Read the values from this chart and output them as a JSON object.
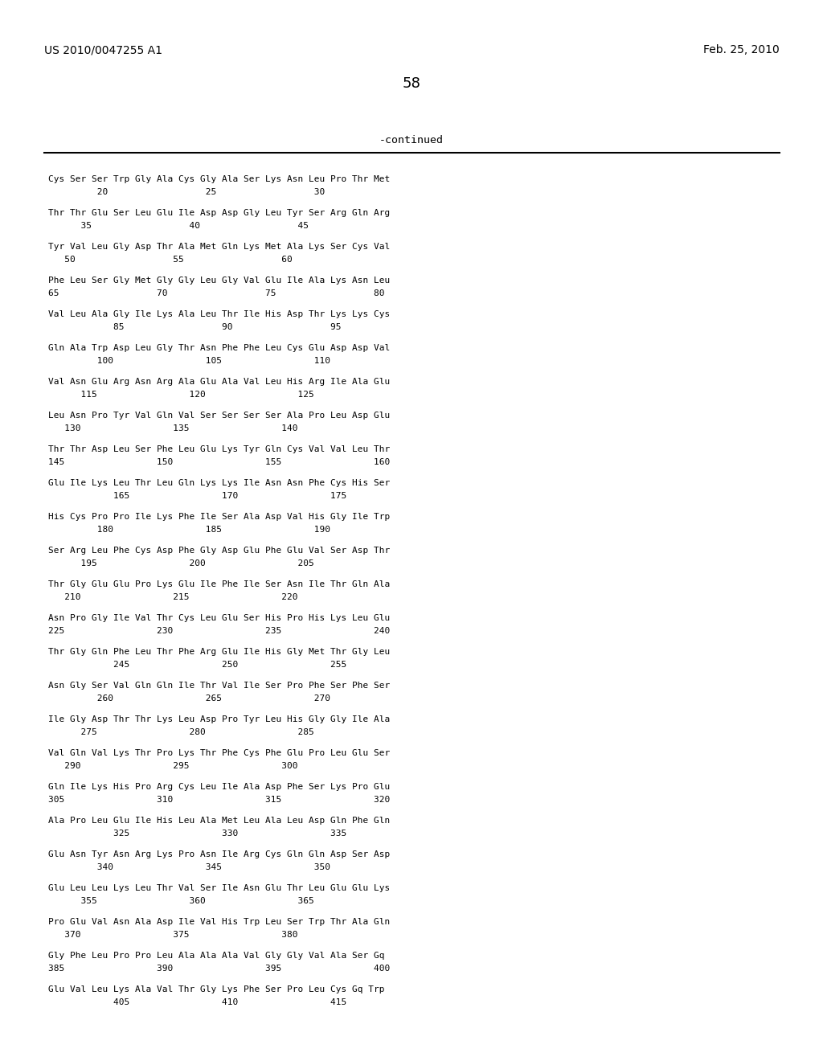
{
  "header_left": "US 2010/0047255 A1",
  "header_right": "Feb. 25, 2010",
  "page_number": "58",
  "continued_label": "-continued",
  "lines": [
    [
      "Cys Ser Ser Trp Gly Ala Cys Gly Ala Ser Lys Asn Leu Pro Thr Met",
      "         20                  25                  30"
    ],
    [
      "Thr Thr Glu Ser Leu Glu Ile Asp Asp Gly Leu Tyr Ser Arg Gln Arg",
      "      35                  40                  45"
    ],
    [
      "Tyr Val Leu Gly Asp Thr Ala Met Gln Lys Met Ala Lys Ser Cys Val",
      "   50                  55                  60"
    ],
    [
      "Phe Leu Ser Gly Met Gly Gly Leu Gly Val Glu Ile Ala Lys Asn Leu",
      "65                  70                  75                  80"
    ],
    [
      "Val Leu Ala Gly Ile Lys Ala Leu Thr Ile His Asp Thr Lys Lys Cys",
      "            85                  90                  95"
    ],
    [
      "Gln Ala Trp Asp Leu Gly Thr Asn Phe Phe Leu Cys Glu Asp Asp Val",
      "         100                 105                 110"
    ],
    [
      "Val Asn Glu Arg Asn Arg Ala Glu Ala Val Leu His Arg Ile Ala Glu",
      "      115                 120                 125"
    ],
    [
      "Leu Asn Pro Tyr Val Gln Val Ser Ser Ser Ser Ala Pro Leu Asp Glu",
      "   130                 135                 140"
    ],
    [
      "Thr Thr Asp Leu Ser Phe Leu Glu Lys Tyr Gln Cys Val Val Leu Thr",
      "145                 150                 155                 160"
    ],
    [
      "Glu Ile Lys Leu Thr Leu Gln Lys Lys Ile Asn Asn Phe Cys His Ser",
      "            165                 170                 175"
    ],
    [
      "His Cys Pro Pro Ile Lys Phe Ile Ser Ala Asp Val His Gly Ile Trp",
      "         180                 185                 190"
    ],
    [
      "Ser Arg Leu Phe Cys Asp Phe Gly Asp Glu Phe Glu Val Ser Asp Thr",
      "      195                 200                 205"
    ],
    [
      "Thr Gly Glu Glu Pro Lys Glu Ile Phe Ile Ser Asn Ile Thr Gln Ala",
      "   210                 215                 220"
    ],
    [
      "Asn Pro Gly Ile Val Thr Cys Leu Glu Ser His Pro His Lys Leu Glu",
      "225                 230                 235                 240"
    ],
    [
      "Thr Gly Gln Phe Leu Thr Phe Arg Glu Ile His Gly Met Thr Gly Leu",
      "            245                 250                 255"
    ],
    [
      "Asn Gly Ser Val Gln Gln Ile Thr Val Ile Ser Pro Phe Ser Phe Ser",
      "         260                 265                 270"
    ],
    [
      "Ile Gly Asp Thr Thr Lys Leu Asp Pro Tyr Leu His Gly Gly Ile Ala",
      "      275                 280                 285"
    ],
    [
      "Val Gln Val Lys Thr Pro Lys Thr Phe Cys Phe Glu Pro Leu Glu Ser",
      "   290                 295                 300"
    ],
    [
      "Gln Ile Lys His Pro Arg Cys Leu Ile Ala Asp Phe Ser Lys Pro Glu",
      "305                 310                 315                 320"
    ],
    [
      "Ala Pro Leu Glu Ile His Leu Ala Met Leu Ala Leu Asp Gln Phe Gln",
      "            325                 330                 335"
    ],
    [
      "Glu Asn Tyr Asn Arg Lys Pro Asn Ile Arg Cys Gln Gln Asp Ser Asp",
      "         340                 345                 350"
    ],
    [
      "Glu Leu Leu Lys Leu Thr Val Ser Ile Asn Glu Thr Leu Glu Glu Lys",
      "      355                 360                 365"
    ],
    [
      "Pro Glu Val Asn Ala Asp Ile Val His Trp Leu Ser Trp Thr Ala Gln",
      "   370                 375                 380"
    ],
    [
      "Gly Phe Leu Pro Pro Leu Ala Ala Ala Val Gly Gly Val Ala Ser Gq",
      "385                 390                 395                 400"
    ],
    [
      "Glu Val Leu Lys Ala Val Thr Gly Lys Phe Ser Pro Leu Cys Gq Trp",
      "            405                 410                 415"
    ]
  ]
}
